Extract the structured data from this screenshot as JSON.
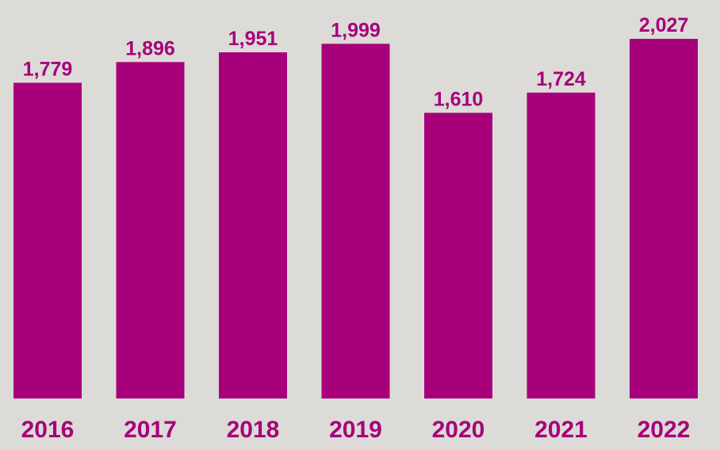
{
  "colors": {
    "background": "#dcdbd7",
    "bar": "#a8007a",
    "text": "#a8007a"
  },
  "chart_data": {
    "type": "bar",
    "title": "",
    "xlabel": "",
    "ylabel": "",
    "categories": [
      "2016",
      "2017",
      "2018",
      "2019",
      "2020",
      "2021",
      "2022"
    ],
    "values": [
      1779,
      1896,
      1951,
      1999,
      1610,
      1724,
      2027
    ],
    "value_labels": [
      "1,779",
      "1,896",
      "1,951",
      "1,999",
      "1,610",
      "1,724",
      "2,027"
    ],
    "ylim": [
      0,
      2100
    ],
    "grid": false,
    "legend": "none",
    "y_axis_visible": false
  }
}
